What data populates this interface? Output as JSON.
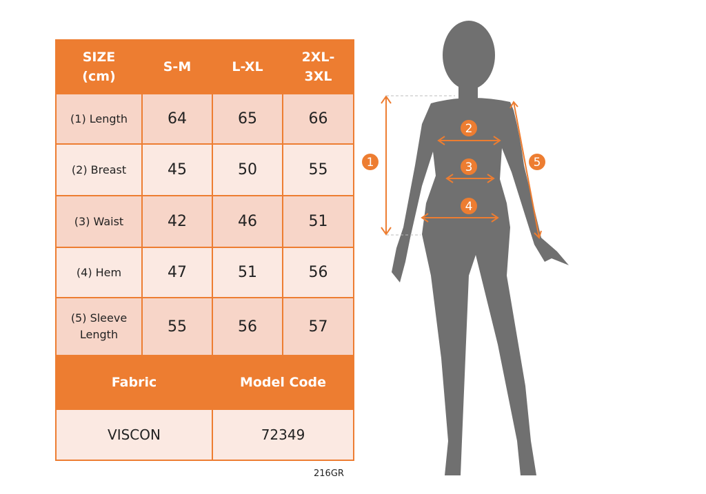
{
  "colors": {
    "accent": "#ED7D31",
    "row_dark": "#F7D5C8",
    "row_light": "#FBE9E2",
    "silhouette": "#707070"
  },
  "table": {
    "header": [
      "SIZE (cm)",
      "S-M",
      "L-XL",
      "2XL-3XL"
    ],
    "rows": [
      {
        "label": "(1) Length",
        "values": [
          "64",
          "65",
          "66"
        ]
      },
      {
        "label": "(2) Breast",
        "values": [
          "45",
          "50",
          "55"
        ]
      },
      {
        "label": "(3) Waist",
        "values": [
          "42",
          "46",
          "51"
        ]
      },
      {
        "label": "(4) Hem",
        "values": [
          "47",
          "51",
          "56"
        ]
      },
      {
        "label": "(5) Sleeve Length",
        "values": [
          "55",
          "56",
          "57"
        ]
      }
    ],
    "fabric_label": "Fabric",
    "model_code_label": "Model Code",
    "fabric_value": "VISCON",
    "model_code_value": "72349"
  },
  "figure": {
    "markers": [
      "1",
      "2",
      "3",
      "4",
      "5"
    ]
  },
  "footer_code": "216GR"
}
